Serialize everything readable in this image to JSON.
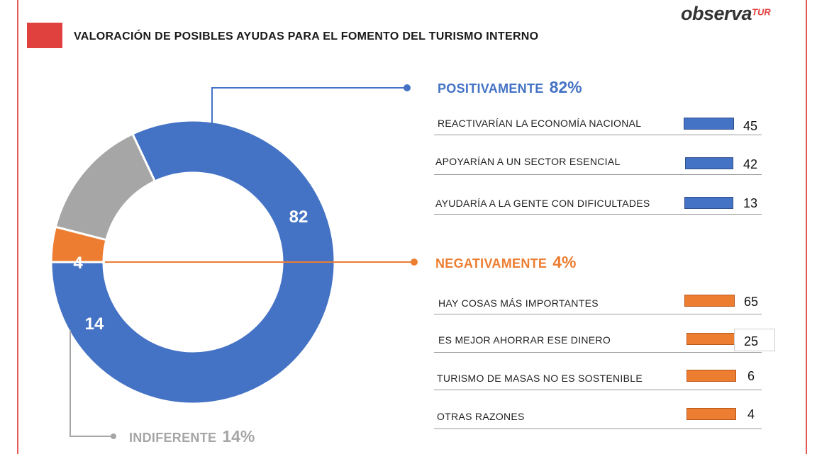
{
  "header": {
    "title": "VALORACIÓN DE POSIBLES AYUDAS PARA EL FOMENTO DEL TURISMO INTERNO",
    "logo_main": "observa",
    "logo_sup": "TUR"
  },
  "colors": {
    "positive": "#4472c4",
    "negative": "#ed7d31",
    "indifferent": "#a6a6a6",
    "accent": "#e0403e"
  },
  "chart_data": [
    {
      "type": "pie",
      "variant": "donut",
      "slices": [
        {
          "label": "POSITIVAMENTE",
          "value": 82,
          "color": "#4472c4"
        },
        {
          "label": "NEGATIVAMENTE",
          "value": 4,
          "color": "#ed7d31"
        },
        {
          "label": "INDIFERENTE",
          "value": 14,
          "color": "#a6a6a6"
        }
      ],
      "data_labels": [
        "82",
        "4",
        "14"
      ]
    },
    {
      "type": "bar",
      "orientation": "horizontal",
      "group": "POSITIVAMENTE",
      "group_value": "82%",
      "categories": [
        "REACTIVARÍAN LA ECONOMÍA NACIONAL",
        "APOYARÍAN A UN SECTOR ESENCIAL",
        "AYUDARÍA A LA GENTE CON DIFICULTADES"
      ],
      "values": [
        45,
        42,
        13
      ],
      "color": "#4472c4"
    },
    {
      "type": "bar",
      "orientation": "horizontal",
      "group": "NEGATIVAMENTE",
      "group_value": "4%",
      "categories": [
        "HAY COSAS MÁS IMPORTANTES",
        "ES MEJOR AHORRAR ESE DINERO",
        "TURISMO DE MASAS NO ES SOSTENIBLE",
        "OTRAS RAZONES"
      ],
      "values": [
        65,
        25,
        6,
        4
      ],
      "color": "#ed7d31"
    }
  ],
  "groups": {
    "positive": {
      "label": "POSITIVAMENTE",
      "pct": "82%",
      "rows": [
        {
          "label": "REACTIVARÍAN LA ECONOMÍA NACIONAL",
          "value": "45"
        },
        {
          "label": "APOYARÍAN A UN SECTOR ESENCIAL",
          "value": "42"
        },
        {
          "label": "AYUDARÍA A LA GENTE CON DIFICULTADES",
          "value": "13"
        }
      ]
    },
    "negative": {
      "label": "NEGATIVAMENTE",
      "pct": "4%",
      "rows": [
        {
          "label": "HAY COSAS MÁS IMPORTANTES",
          "value": "65"
        },
        {
          "label": "ES MEJOR AHORRAR ESE DINERO",
          "value": "25"
        },
        {
          "label": "TURISMO DE MASAS NO ES SOSTENIBLE",
          "value": "6"
        },
        {
          "label": "OTRAS RAZONES",
          "value": "4"
        }
      ]
    },
    "indifferent": {
      "label": "INDIFERENTE",
      "pct": "14%"
    }
  }
}
